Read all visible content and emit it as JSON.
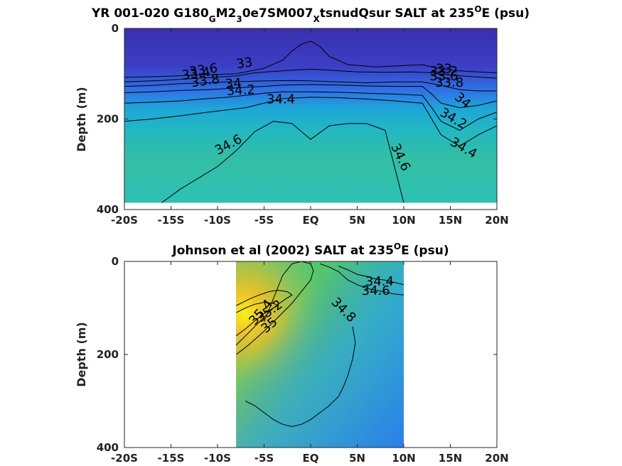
{
  "chart_data": [
    {
      "type": "heatmap",
      "title": {
        "pre": "YR 001-020 G180",
        "sub1": "G",
        "mid1": "M2",
        "sub2": "3",
        "mid2": "0e7SM007",
        "sub3": "X",
        "mid3": "tsnudQsur SALT at 235",
        "sup": "O",
        "post": "E (psu)"
      },
      "ylabel": "Depth (m)",
      "xlim": [
        -20,
        20
      ],
      "ylim": [
        400,
        0
      ],
      "x_ticks": [
        -20,
        -15,
        -10,
        -5,
        0,
        5,
        10,
        15,
        20
      ],
      "x_tick_labels": [
        "-20S",
        "-15S",
        "-10S",
        "-5S",
        "EQ",
        "5N",
        "10N",
        "15N",
        "20N"
      ],
      "y_ticks": [
        0,
        200,
        400
      ],
      "y_tick_labels": [
        "0",
        "200",
        "400"
      ],
      "data_extent": {
        "x": [
          -20,
          20
        ],
        "depth": [
          0,
          385
        ]
      },
      "contour_labels": [
        {
          "text": "33",
          "lon": -7.1,
          "depth": 78,
          "rot": -8
        },
        {
          "text": "33.6",
          "lon": -11.5,
          "depth": 93,
          "rot": -8
        },
        {
          "text": "33.4",
          "lon": -12.3,
          "depth": 101,
          "rot": -8
        },
        {
          "text": "33.8",
          "lon": -11.3,
          "depth": 117,
          "rot": -8
        },
        {
          "text": "34",
          "lon": -8.3,
          "depth": 123,
          "rot": -5
        },
        {
          "text": "34.2",
          "lon": -7.5,
          "depth": 138,
          "rot": -3
        },
        {
          "text": "34.4",
          "lon": -3.2,
          "depth": 158,
          "rot": 0
        },
        {
          "text": "34.6",
          "lon": -8.8,
          "depth": 258,
          "rot": -28
        },
        {
          "text": "34.6",
          "lon": 9.6,
          "depth": 285,
          "rot": 65
        },
        {
          "text": "33",
          "lon": 14.3,
          "depth": 90,
          "rot": 0
        },
        {
          "text": "33.2",
          "lon": 14.3,
          "depth": 96,
          "rot": 0
        },
        {
          "text": "33.6",
          "lon": 14.3,
          "depth": 107,
          "rot": 0
        },
        {
          "text": "33.8",
          "lon": 14.9,
          "depth": 121,
          "rot": 0
        },
        {
          "text": "34",
          "lon": 16.3,
          "depth": 160,
          "rot": 40
        },
        {
          "text": "34.2",
          "lon": 15.3,
          "depth": 200,
          "rot": 30
        },
        {
          "text": "34.4",
          "lon": 16.4,
          "depth": 265,
          "rot": 30
        }
      ],
      "contours": [
        {
          "level": 33,
          "lon": [
            -20,
            -16,
            -12,
            -8,
            -5,
            -3,
            -2,
            -1,
            0,
            1,
            2,
            4,
            7,
            10,
            12,
            13,
            15,
            17,
            18,
            20
          ],
          "depth": [
            108,
            106,
            103,
            100,
            88,
            70,
            50,
            35,
            28,
            40,
            62,
            80,
            85,
            82,
            80,
            85,
            92,
            95,
            96,
            98
          ]
        },
        {
          "level": 33.4,
          "lon": [
            -20,
            -16,
            -12,
            -8,
            -6,
            -4,
            -2,
            0,
            2,
            5,
            8,
            11,
            13,
            15,
            17,
            20
          ],
          "depth": [
            118,
            115,
            110,
            105,
            98,
            95,
            92,
            90,
            92,
            96,
            97,
            96,
            98,
            103,
            106,
            110
          ]
        },
        {
          "level": 33.8,
          "lon": [
            -20,
            -17,
            -14,
            -11,
            -9,
            -7,
            -5,
            -2,
            0,
            3,
            6,
            9,
            12,
            14,
            16,
            18,
            20
          ],
          "depth": [
            128,
            126,
            122,
            120,
            118,
            117,
            116,
            115,
            116,
            118,
            120,
            118,
            118,
            126,
            135,
            138,
            138
          ]
        },
        {
          "level": 34,
          "lon": [
            -20,
            -17,
            -14,
            -11,
            -9,
            -7,
            -5,
            -3,
            0,
            3,
            6,
            9,
            12,
            13,
            14,
            16,
            18,
            20
          ],
          "depth": [
            142,
            140,
            137,
            135,
            133,
            130,
            128,
            125,
            124,
            125,
            127,
            128,
            128,
            145,
            165,
            175,
            170,
            160
          ]
        },
        {
          "level": 34.2,
          "lon": [
            -20,
            -17,
            -14,
            -11,
            -9,
            -7,
            -5,
            -3,
            0,
            3,
            6,
            9,
            12,
            13,
            14,
            16,
            18,
            20
          ],
          "depth": [
            165,
            163,
            160,
            155,
            152,
            148,
            143,
            140,
            140,
            141,
            143,
            145,
            148,
            175,
            205,
            225,
            200,
            185
          ]
        },
        {
          "level": 34.4,
          "lon": [
            -20,
            -17,
            -14,
            -11,
            -9,
            -7,
            -5,
            -3,
            0,
            3,
            6,
            9,
            12,
            13,
            14,
            16,
            18,
            20
          ],
          "depth": [
            205,
            200,
            193,
            185,
            180,
            175,
            165,
            155,
            152,
            153,
            156,
            160,
            165,
            200,
            235,
            260,
            235,
            215
          ]
        },
        {
          "level": 34.6,
          "lon": [
            -16,
            -14,
            -12,
            -10,
            -8,
            -6,
            -4,
            -2,
            0,
            2,
            4,
            6,
            8,
            10
          ],
          "depth": [
            385,
            355,
            330,
            305,
            270,
            228,
            205,
            210,
            245,
            215,
            210,
            210,
            225,
            385
          ]
        }
      ]
    },
    {
      "type": "heatmap",
      "title": {
        "pre": "Johnson et al (2002) SALT at 235",
        "sup": "O",
        "post": "E (psu)"
      },
      "ylabel": "Depth (m)",
      "xlim": [
        -20,
        20
      ],
      "ylim": [
        400,
        0
      ],
      "x_ticks": [
        -20,
        -15,
        -10,
        -5,
        0,
        5,
        10,
        15,
        20
      ],
      "x_tick_labels": [
        "-20S",
        "-15S",
        "-10S",
        "-5S",
        "EQ",
        "5N",
        "10N",
        "15N",
        "20N"
      ],
      "y_ticks": [
        0,
        200,
        400
      ],
      "y_tick_labels": [
        "0",
        "200",
        "400"
      ],
      "data_extent": {
        "x": [
          -8,
          10
        ],
        "depth": [
          0,
          400
        ]
      },
      "contour_labels": [
        {
          "text": "34.4",
          "lon": 7.4,
          "depth": 44,
          "rot": 0
        },
        {
          "text": "34.6",
          "lon": 7.0,
          "depth": 64,
          "rot": 0
        },
        {
          "text": "34.8",
          "lon": 3.5,
          "depth": 105,
          "rot": 45
        },
        {
          "text": "35.2",
          "lon": -4.4,
          "depth": 108,
          "rot": -35
        },
        {
          "text": "35.4",
          "lon": -5.3,
          "depth": 110,
          "rot": -50
        },
        {
          "text": "35",
          "lon": -4.4,
          "depth": 138,
          "rot": -40
        }
      ],
      "contours": [
        {
          "level": 34.4,
          "lon": [
            3,
            4,
            5,
            6,
            7,
            8,
            9,
            10
          ],
          "depth": [
            10,
            18,
            28,
            32,
            38,
            40,
            45,
            50
          ]
        },
        {
          "level": 34.6,
          "lon": [
            1,
            2,
            3,
            4,
            5,
            6,
            7,
            8,
            9,
            10
          ],
          "depth": [
            5,
            12,
            22,
            40,
            50,
            58,
            62,
            66,
            70,
            72
          ]
        },
        {
          "level": 34.8,
          "lon": [
            4.5,
            4.8,
            4.5,
            4,
            3.5,
            3,
            2,
            1,
            0,
            -1,
            -2,
            -3,
            -4,
            -5,
            -6,
            -7
          ],
          "depth": [
            140,
            175,
            210,
            245,
            270,
            290,
            310,
            325,
            340,
            350,
            355,
            350,
            340,
            325,
            310,
            300
          ]
        },
        {
          "level": 35,
          "lon": [
            -8,
            -7,
            -6,
            -5,
            -4,
            -3,
            -2,
            -1,
            0,
            0.3,
            0,
            -1,
            -2,
            -3,
            -4,
            -5
          ],
          "depth": [
            200,
            185,
            168,
            150,
            130,
            110,
            90,
            65,
            40,
            20,
            5,
            0,
            5,
            30,
            80,
            130
          ]
        },
        {
          "level": 35.2,
          "lon": [
            -8,
            -7,
            -6,
            -5,
            -4,
            -3,
            -2,
            -2.5,
            -3.5,
            -4.5,
            -5.5,
            -6.5,
            -7.5,
            -8
          ],
          "depth": [
            180,
            160,
            140,
            120,
            100,
            85,
            72,
            65,
            62,
            65,
            72,
            80,
            90,
            95
          ]
        },
        {
          "level": 35.4,
          "lon": [
            -8,
            -7,
            -6,
            -5,
            -4,
            -3.5,
            -4,
            -5,
            -6,
            -7,
            -8
          ],
          "depth": [
            160,
            145,
            128,
            112,
            100,
            95,
            90,
            88,
            92,
            100,
            110
          ]
        }
      ]
    }
  ]
}
